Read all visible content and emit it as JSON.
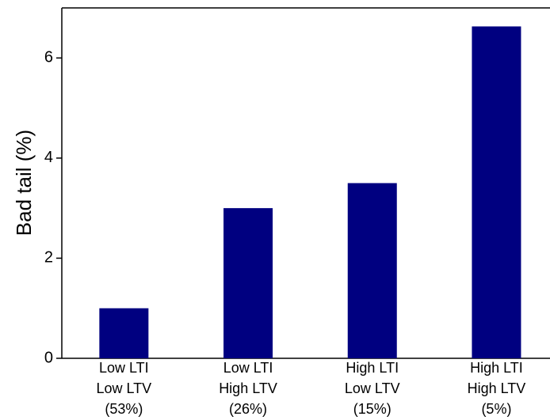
{
  "chart_data": {
    "type": "bar",
    "y_label": "Bad tail (%)",
    "categories": [
      [
        "Low LTI",
        "Low LTV",
        "(53%)"
      ],
      [
        "Low LTI",
        "High LTV",
        "(26%)"
      ],
      [
        "High LTI",
        "Low LTV",
        "(15%)"
      ],
      [
        "High LTI",
        "High LTV",
        "(5%)"
      ]
    ],
    "values": [
      1.0,
      3.0,
      3.5,
      6.63
    ],
    "color": "#000080",
    "ylim": [
      0,
      7
    ],
    "yticks": [
      0,
      2,
      4,
      6
    ]
  }
}
